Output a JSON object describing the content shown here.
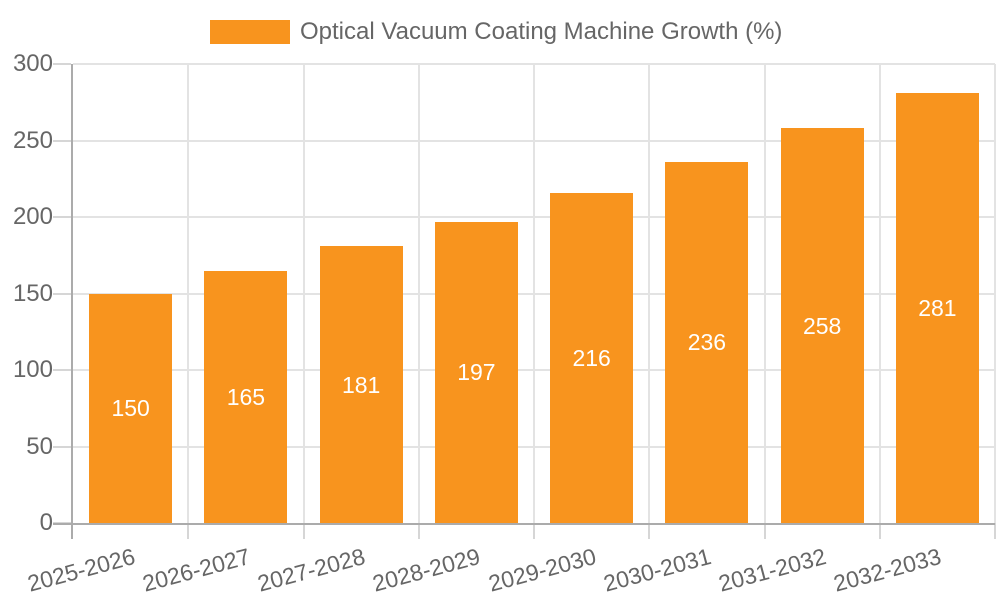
{
  "chart_data": {
    "type": "bar",
    "title": "Optical Vacuum Coating Machine Growth (%)",
    "legend": [
      "Optical Vacuum Coating Machine Growth (%)"
    ],
    "legend_position": "top-center",
    "categories": [
      "2025-2026",
      "2026-2027",
      "2027-2028",
      "2028-2029",
      "2029-2030",
      "2030-2031",
      "2031-2032",
      "2032-2033"
    ],
    "values": [
      150,
      165,
      181,
      197,
      216,
      236,
      258,
      281
    ],
    "xlabel": "",
    "ylabel": "",
    "ylim": [
      0,
      300
    ],
    "y_ticks": [
      0,
      50,
      100,
      150,
      200,
      250,
      300
    ],
    "grid": true,
    "colors": {
      "bar": "#f8941e",
      "value_label": "#ffffff",
      "axis_text": "#666666",
      "grid": "#e3e3e3",
      "tick": "#d6d6d6",
      "axis_line": "#ababab",
      "background": "#ffffff"
    }
  }
}
